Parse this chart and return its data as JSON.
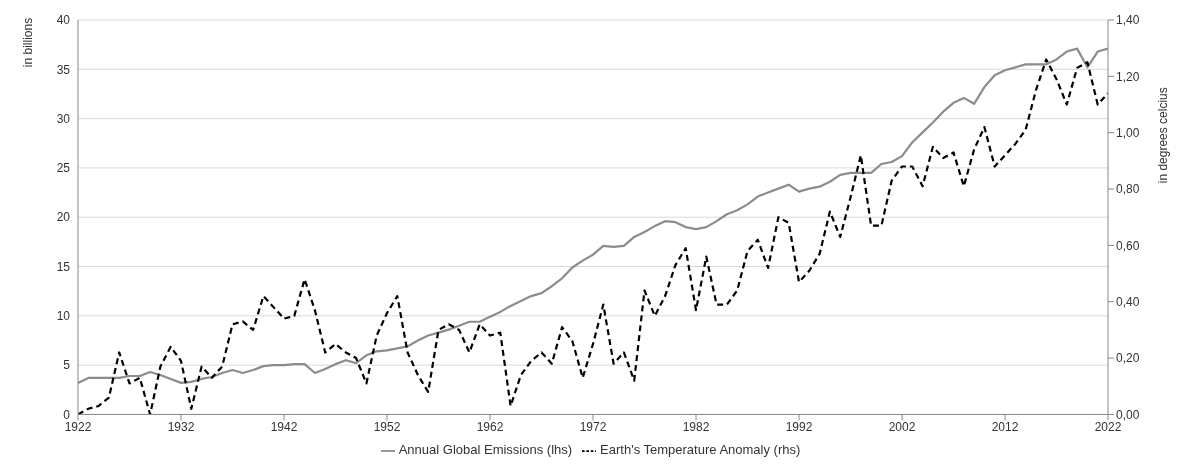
{
  "chart_data": {
    "type": "line",
    "ylabel": "in billions",
    "y2label": "in degrees celcius",
    "x": [
      1922,
      1923,
      1924,
      1925,
      1926,
      1927,
      1928,
      1929,
      1930,
      1931,
      1932,
      1933,
      1934,
      1935,
      1936,
      1937,
      1938,
      1939,
      1940,
      1941,
      1942,
      1943,
      1944,
      1945,
      1946,
      1947,
      1948,
      1949,
      1950,
      1951,
      1952,
      1953,
      1954,
      1955,
      1956,
      1957,
      1958,
      1959,
      1960,
      1961,
      1962,
      1963,
      1964,
      1965,
      1966,
      1967,
      1968,
      1969,
      1970,
      1971,
      1972,
      1973,
      1974,
      1975,
      1976,
      1977,
      1978,
      1979,
      1980,
      1981,
      1982,
      1983,
      1984,
      1985,
      1986,
      1987,
      1988,
      1989,
      1990,
      1991,
      1992,
      1993,
      1994,
      1995,
      1996,
      1997,
      1998,
      1999,
      2000,
      2001,
      2002,
      2003,
      2004,
      2005,
      2006,
      2007,
      2008,
      2009,
      2010,
      2011,
      2012,
      2013,
      2014,
      2015,
      2016,
      2017,
      2018,
      2019,
      2020,
      2021,
      2022
    ],
    "series": [
      {
        "name": "Annual Global Emissions (lhs)",
        "color": "#8c8c8c",
        "line_style": "solid",
        "values": [
          3.2,
          3.7,
          3.7,
          3.7,
          3.7,
          3.9,
          3.9,
          4.3,
          4.0,
          3.6,
          3.2,
          3.3,
          3.6,
          3.8,
          4.2,
          4.5,
          4.2,
          4.5,
          4.9,
          5.0,
          5.0,
          5.1,
          5.1,
          4.2,
          4.6,
          5.1,
          5.5,
          5.2,
          6.0,
          6.4,
          6.5,
          6.7,
          6.9,
          7.5,
          8.0,
          8.3,
          8.6,
          9.0,
          9.4,
          9.4,
          9.9,
          10.4,
          11.0,
          11.5,
          12.0,
          12.3,
          13.0,
          13.8,
          14.9,
          15.6,
          16.2,
          17.1,
          17.0,
          17.1,
          18.0,
          18.5,
          19.1,
          19.6,
          19.5,
          19.0,
          18.8,
          19.0,
          19.6,
          20.3,
          20.7,
          21.3,
          22.1,
          22.5,
          22.9,
          23.3,
          22.6,
          22.9,
          23.1,
          23.6,
          24.3,
          24.5,
          24.5,
          24.5,
          25.4,
          25.6,
          26.2,
          27.6,
          28.6,
          29.6,
          30.7,
          31.6,
          32.1,
          31.5,
          33.2,
          34.4,
          34.9,
          35.2,
          35.5,
          35.5,
          35.5,
          36.0,
          36.8,
          37.1,
          35.2,
          36.8,
          37.1
        ]
      },
      {
        "name": "Earth's Temperature Anomaly (rhs)",
        "color": "#000000",
        "axis": "y2",
        "line_style": "dashed",
        "values": [
          0.0,
          0.02,
          0.03,
          0.06,
          0.22,
          0.11,
          0.13,
          0.0,
          0.17,
          0.24,
          0.19,
          0.02,
          0.17,
          0.13,
          0.17,
          0.32,
          0.33,
          0.3,
          0.42,
          0.38,
          0.34,
          0.35,
          0.48,
          0.37,
          0.22,
          0.25,
          0.22,
          0.2,
          0.11,
          0.28,
          0.36,
          0.42,
          0.22,
          0.14,
          0.08,
          0.3,
          0.32,
          0.3,
          0.22,
          0.32,
          0.28,
          0.29,
          0.03,
          0.14,
          0.19,
          0.22,
          0.18,
          0.31,
          0.26,
          0.13,
          0.25,
          0.39,
          0.18,
          0.22,
          0.12,
          0.44,
          0.35,
          0.42,
          0.53,
          0.59,
          0.37,
          0.56,
          0.39,
          0.39,
          0.44,
          0.58,
          0.62,
          0.52,
          0.7,
          0.68,
          0.47,
          0.51,
          0.57,
          0.72,
          0.63,
          0.77,
          0.92,
          0.67,
          0.67,
          0.83,
          0.88,
          0.88,
          0.81,
          0.95,
          0.91,
          0.93,
          0.81,
          0.94,
          1.02,
          0.88,
          0.92,
          0.96,
          1.01,
          1.15,
          1.26,
          1.19,
          1.1,
          1.23,
          1.25,
          1.1,
          1.14
        ]
      }
    ],
    "xlim": [
      1922,
      2022
    ],
    "xticks": [
      1922,
      1932,
      1942,
      1952,
      1962,
      1972,
      1982,
      1992,
      2002,
      2012,
      2022
    ],
    "ylim": [
      0,
      40
    ],
    "yticks": [
      0,
      5,
      10,
      15,
      20,
      25,
      30,
      35,
      40
    ],
    "y2lim": [
      0,
      1.4
    ],
    "y2ticks": [
      {
        "value": 0,
        "label": "0,00"
      },
      {
        "value": 0.2,
        "label": "0,20"
      },
      {
        "value": 0.4,
        "label": "0,40"
      },
      {
        "value": 0.6,
        "label": "0,60"
      },
      {
        "value": 0.8,
        "label": "0,80"
      },
      {
        "value": 1.0,
        "label": "1,00"
      },
      {
        "value": 1.2,
        "label": "1,20"
      },
      {
        "value": 1.4,
        "label": "1,40"
      }
    ],
    "grid": "y",
    "legend": "bottom",
    "marker": "none"
  }
}
